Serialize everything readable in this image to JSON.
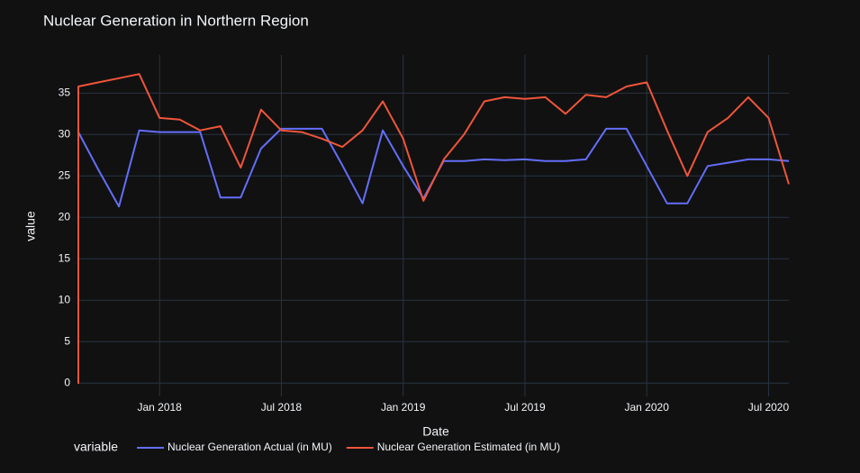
{
  "chart_data": {
    "type": "line",
    "title": "Nuclear Generation in Northern Region",
    "xlabel": "Date",
    "ylabel": "value",
    "legend_title": "variable",
    "legend_position": "bottom",
    "grid": true,
    "xlim": [
      "2017-09",
      "2020-08"
    ],
    "xticks": [
      {
        "value": "2018-01",
        "label": "Jan 2018"
      },
      {
        "value": "2018-07",
        "label": "Jul 2018"
      },
      {
        "value": "2019-01",
        "label": "Jan 2019"
      },
      {
        "value": "2019-07",
        "label": "Jul 2019"
      },
      {
        "value": "2020-01",
        "label": "Jan 2020"
      },
      {
        "value": "2020-07",
        "label": "Jul 2020"
      }
    ],
    "ylim": [
      -1.6,
      39.6
    ],
    "yticks": [
      0,
      5,
      10,
      15,
      20,
      25,
      30,
      35
    ],
    "x": [
      "2017-09",
      "2017-09",
      "2017-09",
      "2017-10",
      "2017-11",
      "2017-12",
      "2018-01",
      "2018-02",
      "2018-03",
      "2018-04",
      "2018-05",
      "2018-06",
      "2018-07",
      "2018-08",
      "2018-09",
      "2018-10",
      "2018-11",
      "2018-12",
      "2019-01",
      "2019-02",
      "2019-03",
      "2019-04",
      "2019-05",
      "2019-06",
      "2019-07",
      "2019-08",
      "2019-09",
      "2019-10",
      "2019-11",
      "2019-12",
      "2020-01",
      "2020-02",
      "2020-03",
      "2020-04",
      "2020-05",
      "2020-06",
      "2020-07",
      "2020-08"
    ],
    "series": [
      {
        "name": "Nuclear Generation Actual (in MU)",
        "color": "#636efa",
        "values": [
          30.3,
          30.3,
          30.3,
          25.7,
          21.3,
          30.5,
          30.3,
          30.3,
          30.3,
          22.4,
          22.4,
          28.3,
          30.7,
          30.7,
          30.7,
          26.3,
          21.7,
          30.5,
          26.2,
          22.3,
          26.8,
          26.8,
          27.0,
          26.9,
          27.0,
          26.8,
          26.8,
          27.0,
          30.7,
          30.7,
          26.2,
          21.7,
          21.7,
          26.2,
          26.6,
          27.0,
          27.0,
          26.8
        ]
      },
      {
        "name": "Nuclear Generation Estimated (in MU)",
        "color": "#EF553B",
        "values": [
          35.5,
          0,
          35.8,
          36.3,
          36.8,
          37.3,
          32.0,
          31.8,
          30.5,
          31.0,
          26.0,
          33.0,
          30.5,
          30.3,
          29.5,
          28.5,
          30.5,
          34.0,
          29.5,
          22.0,
          27.0,
          30.0,
          34.0,
          34.5,
          34.3,
          34.5,
          32.5,
          34.8,
          34.5,
          35.8,
          36.3,
          30.5,
          25.0,
          30.3,
          32.0,
          34.5,
          32.0,
          24.0
        ]
      }
    ]
  }
}
